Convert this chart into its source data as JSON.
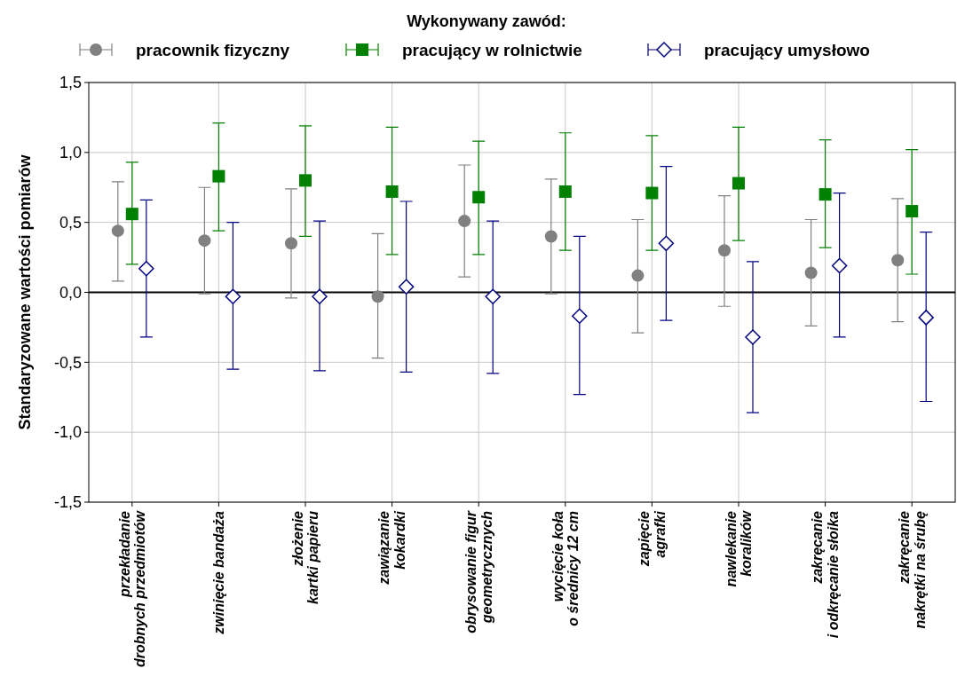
{
  "chart_data": {
    "type": "scatter",
    "ylabel": "Standaryzowane wartości pomiarów",
    "legend_title": "Wykonywany zawód:",
    "legend": "top",
    "grid": true,
    "categories": [
      "przekładanie\ndrobnych przedmiotów",
      "zwinięcie bandaża",
      "złożenie\nkartki papieru",
      "zawiązanie\nkokardki",
      "obrysowanie figur\ngeometrycznych",
      "wycięcie koła\no średnicy 12 cm",
      "zapięcie\nagrafki",
      "nawlekanie\nkoralików",
      "zakręcanie\ni odkręcanie słoika",
      "zakręcanie\nnakrętki na śrubę"
    ],
    "ylim": [
      -1.5,
      1.5
    ],
    "yticks": [
      {
        "value": -1.5,
        "label": "-1,5"
      },
      {
        "value": -1,
        "label": "-1,0"
      },
      {
        "value": -0.5,
        "label": "-0,5"
      },
      {
        "value": 0,
        "label": "0,0"
      },
      {
        "value": 0.5,
        "label": "0,5"
      },
      {
        "value": 1,
        "label": "1,0"
      },
      {
        "value": 1.5,
        "label": "1,5"
      }
    ],
    "ref_lines": [
      {
        "axis": "y",
        "value": 0,
        "color": "#000000"
      }
    ],
    "series": [
      {
        "name": "pracownik fizyczny",
        "color": "#808080",
        "marker": "circle",
        "values": [
          0.44,
          0.37,
          0.35,
          -0.03,
          0.51,
          0.4,
          0.12,
          0.3,
          0.14,
          0.23
        ],
        "errors": [
          [
            0.08,
            0.79
          ],
          [
            -0.01,
            0.75
          ],
          [
            -0.04,
            0.74
          ],
          [
            -0.47,
            0.42
          ],
          [
            0.11,
            0.91
          ],
          [
            -0.01,
            0.81
          ],
          [
            -0.29,
            0.52
          ],
          [
            -0.1,
            0.69
          ],
          [
            -0.24,
            0.52
          ],
          [
            -0.21,
            0.67
          ]
        ]
      },
      {
        "name": "pracujący w rolnictwie",
        "color": "#008000",
        "marker": "square",
        "values": [
          0.56,
          0.83,
          0.8,
          0.72,
          0.68,
          0.72,
          0.71,
          0.78,
          0.7,
          0.58
        ],
        "errors": [
          [
            0.2,
            0.93
          ],
          [
            0.44,
            1.21
          ],
          [
            0.4,
            1.19
          ],
          [
            0.27,
            1.18
          ],
          [
            0.27,
            1.08
          ],
          [
            0.3,
            1.14
          ],
          [
            0.3,
            1.12
          ],
          [
            0.37,
            1.18
          ],
          [
            0.32,
            1.09
          ],
          [
            0.13,
            1.02
          ]
        ]
      },
      {
        "name": "pracujący umysłowo",
        "color": "#000080",
        "marker": "diamond",
        "values": [
          0.17,
          -0.03,
          -0.03,
          0.04,
          -0.03,
          -0.17,
          0.35,
          -0.32,
          0.19,
          -0.18
        ],
        "errors": [
          [
            -0.32,
            0.66
          ],
          [
            -0.55,
            0.5
          ],
          [
            -0.56,
            0.51
          ],
          [
            -0.57,
            0.65
          ],
          [
            -0.58,
            0.51
          ],
          [
            -0.73,
            0.4
          ],
          [
            -0.2,
            0.9
          ],
          [
            -0.86,
            0.22
          ],
          [
            -0.32,
            0.71
          ],
          [
            -0.78,
            0.43
          ]
        ]
      }
    ]
  }
}
